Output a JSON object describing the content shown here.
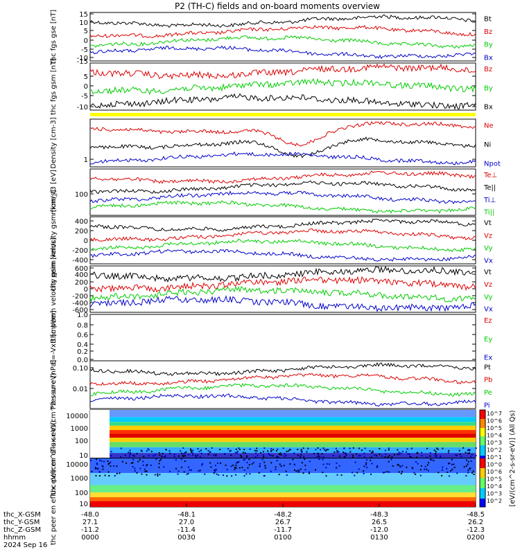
{
  "title": "P2 (TH-C) fields and on-board moments overview",
  "chart_data": {
    "type": "line",
    "title": "P2 (TH-C) fields and on-board moments overview",
    "x_axis": {
      "rows": [
        {
          "label": "thc_X-GSM",
          "values": [
            "-48.0",
            "-48.1",
            "-48.2",
            "-48.3",
            "-48.5"
          ]
        },
        {
          "label": "thc_Y-GSM",
          "values": [
            "27.1",
            "27.0",
            "26.7",
            "26.5",
            "26.2"
          ]
        },
        {
          "label": "thc_Z-GSM",
          "values": [
            "-11.2",
            "-11.4",
            "-11.7",
            "-12.0",
            "-12.3"
          ]
        },
        {
          "label": "hhmm",
          "values": [
            "0000",
            "0030",
            "0100",
            "0130",
            "0200"
          ]
        }
      ],
      "date": "2024 Sep 16",
      "range_minutes": [
        0,
        120
      ]
    },
    "panels": [
      {
        "id": "fgs-gse",
        "ylabel": "thc fgs gse [nT]",
        "yticks": [
          "15",
          "10",
          "5",
          "0",
          "-5",
          "-10",
          "-15"
        ],
        "ylim": [
          -15,
          15
        ],
        "series": [
          {
            "name": "Bt",
            "color": "#000000"
          },
          {
            "name": "Bz",
            "color": "#dd0000"
          },
          {
            "name": "By",
            "color": "#00cc00"
          },
          {
            "name": "Bx",
            "color": "#0000cc"
          }
        ]
      },
      {
        "id": "fgs-gsm",
        "ylabel": "thc fgs gsm [nT]",
        "yticks": [
          "5",
          "0",
          "-5",
          "-10"
        ],
        "ylim": [
          -14,
          10
        ],
        "series": [
          {
            "name": "Bz",
            "color": "#dd0000"
          },
          {
            "name": "By",
            "color": "#00cc00"
          },
          {
            "name": "Bx",
            "color": "#000000"
          }
        ]
      },
      {
        "id": "density",
        "ylabel": "Density [cm-3]",
        "yticks": [
          "1"
        ],
        "scale": "log",
        "series": [
          {
            "name": "Ne",
            "color": "#dd0000"
          },
          {
            "name": "Ni",
            "color": "#000000"
          },
          {
            "name": "Npot",
            "color": "#0000cc"
          }
        ]
      },
      {
        "id": "temperature",
        "ylabel": "mom_t3 [eV]",
        "yticks": [
          "100"
        ],
        "scale": "log",
        "series": [
          {
            "name": "Te⊥",
            "color": "#dd0000"
          },
          {
            "name": "Te||",
            "color": "#000000"
          },
          {
            "name": "Ti⊥",
            "color": "#0000cc"
          },
          {
            "name": "Ti||",
            "color": "#00cc00"
          }
        ]
      },
      {
        "id": "peim-velocity",
        "ylabel": "thc peim velocity gsm [km/s]",
        "yticks": [
          "400",
          "200",
          "0",
          "-200",
          "-400"
        ],
        "ylim": [
          -450,
          450
        ],
        "series": [
          {
            "name": "Vt",
            "color": "#000000"
          },
          {
            "name": "Vz",
            "color": "#dd0000"
          },
          {
            "name": "Vy",
            "color": "#00cc00"
          },
          {
            "name": "Vx",
            "color": "#0000cc"
          }
        ]
      },
      {
        "id": "peem-velocity",
        "ylabel": "thc peem velocity gsm [km/s]",
        "yticks": [
          "600",
          "400",
          "200",
          "0",
          "-200",
          "-400",
          "-600"
        ],
        "ylim": [
          -650,
          650
        ],
        "series": [
          {
            "name": "Vt",
            "color": "#000000"
          },
          {
            "name": "Vz",
            "color": "#dd0000"
          },
          {
            "name": "Vy",
            "color": "#00cc00"
          },
          {
            "name": "Vx",
            "color": "#0000cc"
          }
        ]
      },
      {
        "id": "efield",
        "ylabel": "E=-VxB [mV/m]",
        "yticks": [
          "1.0",
          "0.8",
          "0.6",
          "0.4",
          "0.2",
          "0.0"
        ],
        "ylim": [
          0,
          1
        ],
        "series": [
          {
            "name": "Ez",
            "color": "#dd0000"
          },
          {
            "name": "Ey",
            "color": "#00cc00"
          },
          {
            "name": "Ex",
            "color": "#0000cc"
          }
        ]
      },
      {
        "id": "pressure",
        "ylabel": "Pressure [nPa]",
        "yticks": [
          "0.10",
          "0.01"
        ],
        "scale": "log",
        "series": [
          {
            "name": "Pt",
            "color": "#000000"
          },
          {
            "name": "Pb",
            "color": "#dd0000"
          },
          {
            "name": "Pe",
            "color": "#00cc00"
          },
          {
            "name": "Pi",
            "color": "#0000cc"
          }
        ]
      },
      {
        "id": "peir-spectrogram",
        "type": "heatmap",
        "ylabel": "thc peir en eflux eV/(cm^2-s-sr-eV)",
        "yticks": [
          "10000",
          "1000",
          "100",
          "10"
        ]
      },
      {
        "id": "peer-spectrogram",
        "type": "heatmap",
        "ylabel": "thc peer en eflux eV/(cm^2-s-sr-eV)",
        "yticks": [
          "10000",
          "1000",
          "100",
          "10"
        ]
      }
    ],
    "colorbar": {
      "label": "[eV/(cm^2-s-sr-eV)] (All Qs)",
      "ticks": [
        "10^7",
        "10^6",
        "10^5",
        "10^4",
        "10^3",
        "10^2",
        "10^1",
        "10^0",
        "10^6",
        "10^5",
        "10^4",
        "10^3",
        "10^2"
      ]
    },
    "flag_bar_color": "#ffff00"
  }
}
